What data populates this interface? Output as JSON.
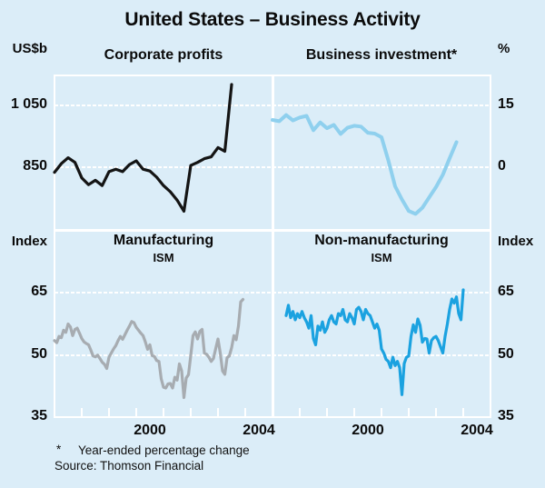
{
  "title": "United States – Business Activity",
  "colors": {
    "background": "#dbedf8",
    "grid": "#ffffff",
    "corporate_profits_line": "#141414",
    "business_investment_line": "#8fd0ee",
    "manufacturing_line": "#a7acb1",
    "non_manufacturing_line": "#1ba2e0"
  },
  "axes": {
    "top_left_unit": "US$b",
    "top_right_unit": "%",
    "bottom_left_unit": "Index",
    "bottom_right_unit": "Index"
  },
  "x_axis": {
    "range": [
      1997,
      2005
    ],
    "tick_years": [
      1998,
      1999,
      2000,
      2001,
      2002,
      2003,
      2004
    ],
    "year_labels": [
      {
        "text": "2000",
        "t": 2000.5
      },
      {
        "text": "2004",
        "t": 2004.5
      }
    ]
  },
  "footnote": {
    "marker": "*",
    "text": "Year-ended percentage change"
  },
  "source": "Source: Thomson Financial",
  "chart_data": [
    {
      "key": "corporate_profits",
      "type": "line",
      "title": "Corporate profits",
      "unit": "US$b",
      "ylim": [
        650,
        1150
      ],
      "yticks": [
        1050,
        850
      ],
      "ytick_labels": [
        "1 050",
        "850"
      ],
      "xlim": [
        1997,
        2005
      ],
      "frequency": "quarterly",
      "x_start": 1997.0,
      "x_step": 0.25,
      "color": "#141414",
      "stroke_width": 3.2,
      "values": [
        838,
        866,
        885,
        870,
        820,
        798,
        812,
        795,
        840,
        848,
        840,
        863,
        875,
        848,
        842,
        822,
        795,
        775,
        748,
        712,
        860,
        870,
        882,
        888,
        918,
        906,
        1122
      ]
    },
    {
      "key": "business_investment",
      "type": "line",
      "title": "Business investment*",
      "unit": "%",
      "ylim": [
        -15,
        22.5
      ],
      "yticks": [
        15,
        0
      ],
      "ytick_labels": [
        "15",
        "0"
      ],
      "xlim": [
        1997,
        2005
      ],
      "frequency": "quarterly",
      "x_start": 1997.0,
      "x_step": 0.25,
      "color": "#8fd0ee",
      "stroke_width": 4,
      "values": [
        11.8,
        11.5,
        13.0,
        11.7,
        12.4,
        12.8,
        9.3,
        11.2,
        9.8,
        10.6,
        8.4,
        9.9,
        10.4,
        10.2,
        8.7,
        8.5,
        7.6,
        2.0,
        -4.3,
        -7.5,
        -10.3,
        -11.0,
        -9.5,
        -7.0,
        -4.5,
        -1.5,
        2.5,
        6.4
      ]
    },
    {
      "key": "manufacturing_ism",
      "type": "line",
      "title": "Manufacturing",
      "subtitle": "ISM",
      "unit": "Index",
      "ylim": [
        35,
        80
      ],
      "yticks": [
        65,
        50,
        35
      ],
      "ytick_labels": [
        "65",
        "50",
        "35"
      ],
      "xlim": [
        1997,
        2005
      ],
      "frequency": "monthly",
      "x_start": 1997.0,
      "x_step": 0.0833333,
      "color": "#a7acb1",
      "stroke_width": 3.2,
      "values": [
        53.5,
        53.0,
        54.5,
        54.2,
        56.0,
        55.5,
        57.5,
        56.8,
        54.7,
        56.2,
        56.5,
        55.3,
        54.0,
        53.2,
        52.8,
        52.5,
        51.2,
        49.8,
        49.6,
        50.0,
        49.2,
        48.3,
        47.8,
        46.8,
        49.5,
        50.5,
        51.5,
        52.3,
        53.5,
        54.5,
        53.8,
        54.9,
        56.0,
        57.0,
        58.1,
        57.8,
        56.7,
        56.0,
        55.3,
        54.7,
        53.2,
        51.4,
        52.5,
        49.9,
        49.7,
        48.7,
        48.5,
        44.3,
        42.3,
        42.1,
        43.1,
        43.2,
        42.1,
        44.7,
        44.0,
        47.9,
        46.2,
        39.8,
        44.5,
        45.3,
        49.9,
        54.7,
        55.6,
        53.9,
        55.7,
        56.2,
        50.5,
        50.2,
        49.5,
        48.5,
        49.2,
        51.6,
        53.9,
        50.5,
        46.2,
        45.4,
        49.4,
        49.8,
        51.8,
        54.7,
        53.7,
        57.0,
        62.8,
        63.4
      ]
    },
    {
      "key": "non_manufacturing_ism",
      "type": "line",
      "title": "Non-manufacturing",
      "subtitle": "ISM",
      "unit": "Index",
      "ylim": [
        35,
        80
      ],
      "yticks": [
        65,
        50,
        35
      ],
      "ytick_labels": [
        "65",
        "50",
        "35"
      ],
      "xlim": [
        1997,
        2005
      ],
      "frequency": "monthly",
      "x_start": 1997.5,
      "x_step": 0.0833333,
      "color": "#1ba2e0",
      "stroke_width": 3.2,
      "values": [
        59.5,
        62.0,
        59.0,
        60.5,
        58.5,
        60.0,
        59.0,
        60.5,
        59.0,
        58.0,
        56.5,
        59.5,
        54.0,
        52.5,
        57.0,
        56.0,
        58.0,
        55.5,
        56.5,
        58.5,
        59.5,
        58.0,
        57.5,
        60.0,
        59.5,
        61.0,
        58.5,
        58.0,
        60.0,
        59.0,
        57.5,
        61.0,
        61.5,
        60.5,
        58.5,
        61.0,
        60.0,
        59.5,
        58.0,
        56.5,
        57.5,
        56.0,
        51.5,
        50.5,
        49.0,
        48.5,
        47.0,
        49.5,
        47.5,
        48.5,
        47.0,
        40.5,
        48.0,
        49.5,
        49.8,
        54.5,
        57.3,
        55.5,
        58.7,
        57.2,
        53.1,
        54.0,
        53.9,
        50.5,
        53.5,
        54.2,
        54.5,
        53.5,
        52.0,
        50.5,
        54.5,
        57.5,
        61.0,
        63.5,
        62.5,
        64.0,
        60.0,
        58.5,
        65.7
      ]
    }
  ]
}
